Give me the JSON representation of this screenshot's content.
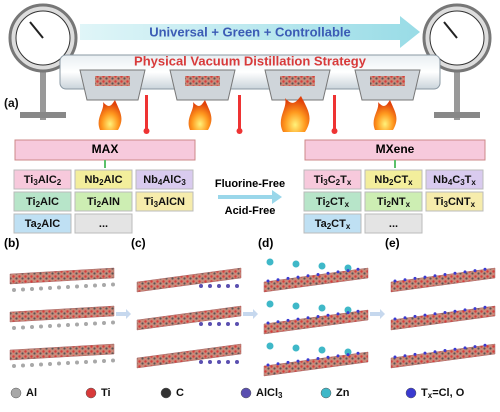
{
  "panel_labels": [
    "(a)",
    "(b)",
    "(c)",
    "(d)",
    "(e)"
  ],
  "banner": {
    "top": "Universal + Green + Controllable",
    "bottom": "Physical Vacuum Distillation Strategy"
  },
  "max": {
    "title": "MAX",
    "cells": [
      [
        [
          "Ti",
          "3",
          "AlC",
          "2"
        ],
        [
          "Nb",
          "2",
          "AlC"
        ],
        [
          "Nb",
          "4",
          "AlC",
          "3"
        ]
      ],
      [
        [
          "Ti",
          "2",
          "AlC"
        ],
        [
          "Ti",
          "2",
          "AlN"
        ],
        [
          "Ti",
          "3",
          "AlCN"
        ]
      ],
      [
        [
          "Ta",
          "2",
          "AlC"
        ],
        [
          "..."
        ]
      ]
    ]
  },
  "mxene": {
    "title": "MXene",
    "cells": [
      [
        [
          "Ti",
          "3",
          "C",
          "2",
          "T",
          "x"
        ],
        [
          "Nb",
          "2",
          "CT",
          "x"
        ],
        [
          "Nb",
          "4",
          "C",
          "3",
          "T",
          "x"
        ]
      ],
      [
        [
          "Ti",
          "2",
          "CT",
          "x"
        ],
        [
          "Ti",
          "2",
          "NT",
          "x"
        ],
        [
          "Ti",
          "3",
          "CNT",
          "x"
        ]
      ],
      [
        [
          "Ta",
          "2",
          "CT",
          "x"
        ],
        [
          "..."
        ]
      ]
    ]
  },
  "conditions": [
    "Fluorine-Free",
    "Acid-Free"
  ],
  "legend": [
    {
      "label": [
        "Al"
      ],
      "color": "#a8a8a8"
    },
    {
      "label": [
        "Ti"
      ],
      "color": "#d83a3a"
    },
    {
      "label": [
        "C"
      ],
      "color": "#333333"
    },
    {
      "label": [
        "AlCl",
        "3"
      ],
      "color": "#5a4fb0"
    },
    {
      "label": [
        "Zn"
      ],
      "color": "#3fb8c8"
    },
    {
      "label": [
        "T",
        "x",
        "=Cl, O"
      ],
      "color": "#3a3ad0"
    }
  ]
}
